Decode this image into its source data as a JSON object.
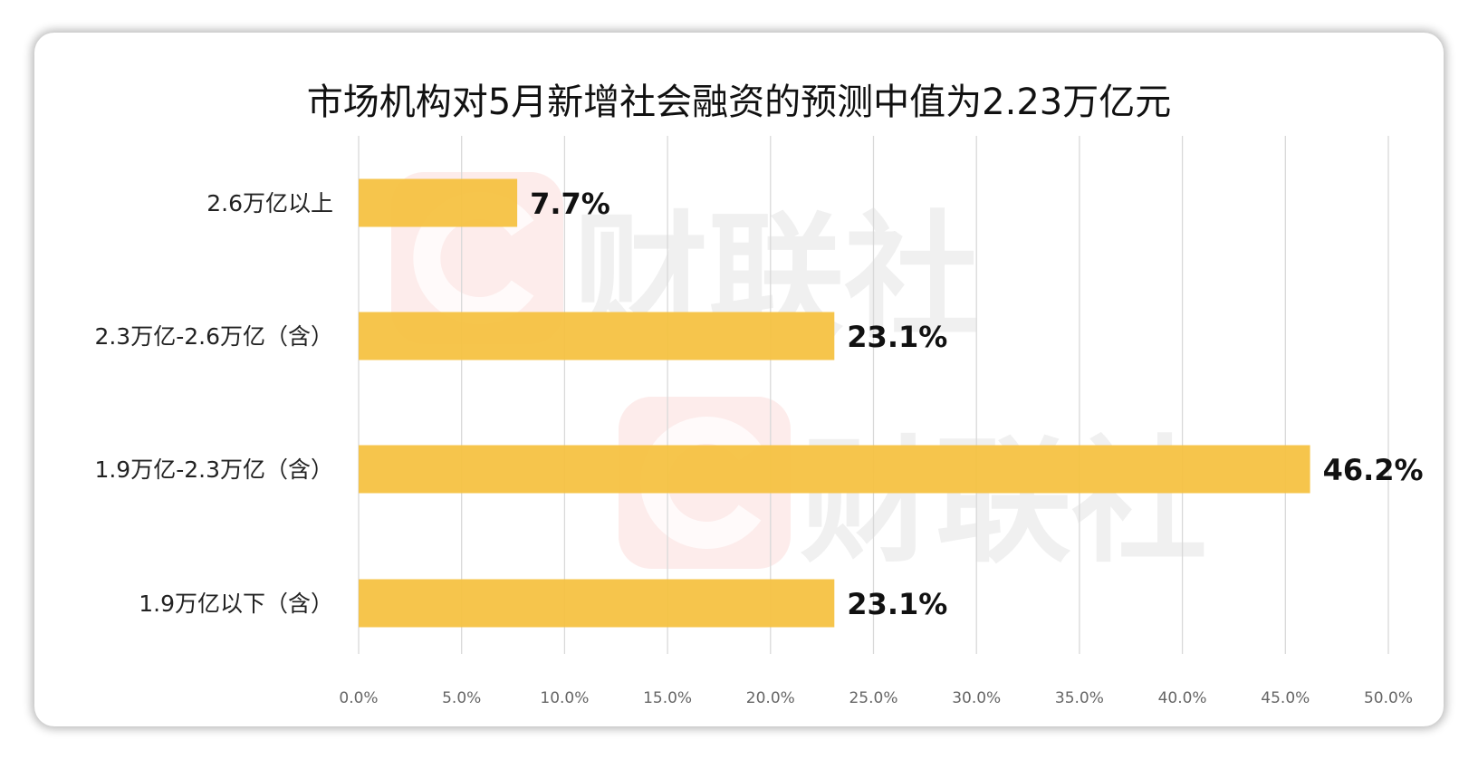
{
  "chart_data": {
    "type": "bar",
    "orientation": "horizontal",
    "title": "市场机构对5月新增社会融资的预测中值为2.23万亿元",
    "categories": [
      "2.6万亿以上",
      "2.3万亿-2.6万亿（含）",
      "1.9万亿-2.3万亿（含）",
      "1.9万亿以下（含）"
    ],
    "values": [
      7.7,
      23.1,
      46.2,
      23.1
    ],
    "data_labels": [
      "7.7%",
      "23.1%",
      "46.2%",
      "23.1%"
    ],
    "xlim": [
      0,
      50
    ],
    "x_ticks": [
      "0.0%",
      "5.0%",
      "10.0%",
      "15.0%",
      "20.0%",
      "25.0%",
      "30.0%",
      "35.0%",
      "40.0%",
      "45.0%",
      "50.0%"
    ],
    "xlabel": "",
    "ylabel": "",
    "grid": "vertical",
    "bar_color": "#F5C242",
    "grid_color": "#D9D9D9"
  },
  "watermark": {
    "text": "财联社",
    "logo_color": "#F28B82"
  }
}
